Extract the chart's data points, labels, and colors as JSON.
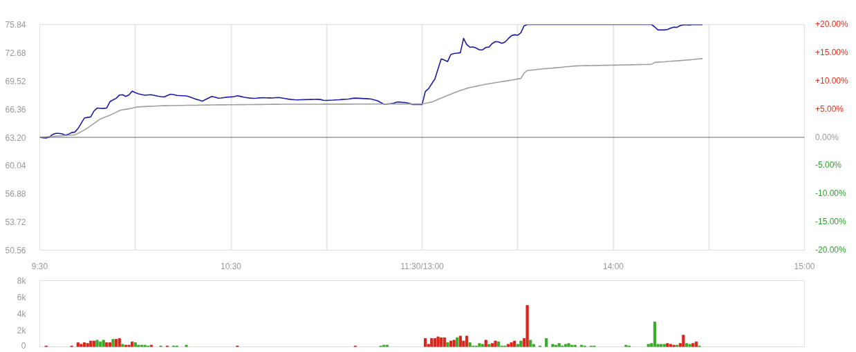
{
  "chart_data": [
    {
      "type": "line",
      "categories": [
        "9:30",
        null,
        null,
        null,
        null,
        null,
        null,
        null,
        null,
        null,
        null,
        null,
        null,
        null,
        null,
        null,
        null,
        null,
        null,
        null,
        null,
        null,
        null,
        null,
        null,
        null,
        null,
        null,
        null,
        null,
        null,
        null,
        null,
        null,
        null,
        null,
        null,
        null,
        null,
        null,
        null,
        null,
        null,
        null,
        null,
        null,
        null,
        null,
        null,
        null,
        null,
        null,
        null,
        null,
        null,
        null,
        null,
        null,
        null,
        null,
        "10:30",
        null,
        null,
        null,
        null,
        null,
        null,
        null,
        null,
        null,
        null,
        null,
        null,
        null,
        null,
        null,
        null,
        null,
        null,
        null,
        null,
        null,
        null,
        null,
        null,
        null,
        null,
        null,
        null,
        null,
        null,
        null,
        null,
        null,
        null,
        null,
        null,
        null,
        null,
        null,
        null,
        null,
        null,
        null,
        null,
        null,
        null,
        null,
        null,
        null,
        null,
        null,
        null,
        null,
        null,
        null,
        null,
        null,
        null,
        null,
        "11:30/13:00",
        null,
        null,
        null,
        null,
        null,
        null,
        null,
        null,
        null,
        null,
        null,
        null,
        null,
        null,
        null,
        null,
        null,
        null,
        null,
        null,
        null,
        null,
        null,
        null,
        null,
        null,
        null,
        null,
        null,
        null,
        null,
        null,
        null,
        null,
        null,
        null,
        null,
        null,
        null,
        null,
        null,
        null,
        null,
        null,
        null,
        null,
        null,
        null,
        null,
        null,
        null,
        null,
        null,
        null,
        null,
        null,
        null,
        null,
        null,
        "14:00",
        null,
        null,
        null,
        null,
        null,
        null,
        null,
        null,
        null,
        null,
        null,
        null,
        null,
        null,
        null,
        null,
        null,
        null,
        null,
        null,
        null,
        null,
        null,
        null,
        null,
        null,
        null,
        null,
        null,
        null,
        null,
        null,
        null,
        null,
        null,
        null,
        null,
        null,
        null,
        null,
        null,
        null,
        null,
        null,
        null,
        null,
        null,
        null,
        null,
        null,
        null,
        null,
        null,
        null,
        null,
        null,
        null,
        null,
        null,
        "15:00"
      ],
      "ylim": [
        50.56,
        75.84
      ],
      "yticks": [
        50.56,
        53.72,
        56.88,
        60.04,
        {
          "value": 63.2,
          "label": "63.20"
        },
        66.36,
        69.52,
        72.68,
        75.84
      ],
      "y2lim": [
        -20,
        20
      ],
      "y2ticks": [
        {
          "value": 20,
          "label": "+20.00%"
        },
        {
          "value": 15,
          "label": "+15.00%"
        },
        {
          "value": 10,
          "label": "+10.00%"
        },
        {
          "value": 5,
          "label": "+5.00%"
        },
        {
          "value": 0,
          "label": "0.00%"
        },
        {
          "value": -5,
          "label": "-5.00%"
        },
        {
          "value": -10,
          "label": "-10.00%"
        },
        {
          "value": -15,
          "label": "-15.00%"
        },
        {
          "value": -20,
          "label": "-20.00%"
        }
      ],
      "grid": "x",
      "ref_lines": [
        {
          "axis": "y",
          "value": 63.2,
          "color": "#666666"
        }
      ],
      "series": [
        {
          "color": "#1a1aa6",
          "values": [
            63.2,
            63.14,
            63.13,
            63.23,
            63.51,
            63.65,
            63.65,
            63.58,
            63.45,
            63.54,
            63.73,
            63.79,
            64.18,
            64.77,
            65.36,
            65.43,
            65.49,
            66.14,
            66.48,
            66.45,
            66.44,
            66.49,
            67.18,
            67.4,
            67.58,
            67.94,
            67.97,
            67.78,
            67.96,
            68.38,
            68.2,
            68.07,
            67.99,
            67.91,
            67.95,
            67.97,
            67.9,
            67.82,
            67.76,
            67.73,
            67.88,
            68.03,
            67.99,
            67.9,
            67.88,
            67.86,
            67.84,
            67.74,
            67.6,
            67.48,
            67.37,
            67.25,
            67.43,
            67.6,
            67.78,
            67.71,
            67.59,
            67.61,
            67.67,
            67.71,
            67.73,
            67.76,
            67.86,
            67.79,
            67.7,
            67.65,
            67.6,
            67.57,
            67.59,
            67.62,
            67.64,
            67.63,
            67.62,
            67.61,
            67.64,
            67.67,
            67.61,
            67.55,
            67.48,
            67.44,
            67.41,
            67.39,
            67.41,
            67.42,
            67.43,
            67.44,
            67.45,
            67.46,
            67.44,
            67.36,
            67.34,
            67.36,
            67.37,
            67.39,
            67.41,
            67.44,
            67.47,
            67.49,
            67.56,
            67.6,
            67.58,
            67.56,
            67.54,
            67.52,
            67.49,
            67.39,
            67.3,
            67.1,
            66.92,
            66.94,
            66.97,
            67.03,
            67.14,
            67.16,
            67.11,
            67.09,
            67.0,
            66.88,
            66.88,
            66.88,
            66.88,
            68.33,
            68.64,
            69.19,
            69.73,
            70.87,
            71.99,
            71.86,
            71.69,
            72.48,
            72.59,
            72.63,
            72.68,
            74.29,
            73.58,
            73.29,
            73.33,
            73.19,
            73.0,
            73.01,
            73.27,
            73.32,
            73.71,
            73.93,
            73.89,
            73.73,
            73.87,
            74.24,
            74.58,
            74.69,
            74.64,
            74.92,
            75.69,
            75.84,
            75.84,
            75.84,
            75.84,
            75.84,
            75.84,
            75.84,
            75.84,
            75.84,
            75.84,
            75.84,
            75.84,
            75.84,
            75.84,
            75.84,
            75.84,
            75.84,
            75.84,
            75.84,
            75.84,
            75.84,
            75.84,
            75.84,
            75.84,
            75.84,
            75.84,
            75.84,
            75.84,
            75.84,
            75.84,
            75.84,
            75.84,
            75.84,
            75.84,
            75.84,
            75.84,
            75.84,
            75.84,
            75.84,
            75.84,
            75.57,
            75.23,
            75.23,
            75.23,
            75.28,
            75.44,
            75.55,
            75.52,
            75.72,
            75.81,
            75.8,
            75.79,
            75.84,
            75.83,
            75.83,
            75.82,
            null,
            null,
            null,
            null,
            null,
            null,
            null,
            null,
            null,
            null,
            null,
            null,
            null,
            null,
            null,
            null,
            null,
            null,
            null,
            null,
            null,
            null,
            null,
            null,
            null,
            null,
            null,
            null,
            null,
            null,
            null,
            null
          ]
        },
        {
          "color": "#9e9e9e",
          "values": [
            63.2,
            63.23,
            63.25,
            63.28,
            63.3,
            63.33,
            63.36,
            63.38,
            63.41,
            63.43,
            63.45,
            63.48,
            63.64,
            63.83,
            64.02,
            64.25,
            64.5,
            64.75,
            65.0,
            65.26,
            65.4,
            65.54,
            65.67,
            65.84,
            66.01,
            66.19,
            66.29,
            66.34,
            66.4,
            66.47,
            66.56,
            66.61,
            66.63,
            66.65,
            66.67,
            66.68,
            66.7,
            66.72,
            66.74,
            66.75,
            66.75,
            66.76,
            66.76,
            66.77,
            66.77,
            66.78,
            66.79,
            66.79,
            66.8,
            66.8,
            66.81,
            66.81,
            66.82,
            66.82,
            66.83,
            66.83,
            66.84,
            66.84,
            66.84,
            66.85,
            66.85,
            66.85,
            66.86,
            66.86,
            66.86,
            66.87,
            66.87,
            66.87,
            66.88,
            66.88,
            66.88,
            66.89,
            66.89,
            66.9,
            66.9,
            66.9,
            66.91,
            66.91,
            66.91,
            66.91,
            66.91,
            66.91,
            66.91,
            66.91,
            66.91,
            66.91,
            66.91,
            66.91,
            66.91,
            66.92,
            66.92,
            66.92,
            66.92,
            66.92,
            66.92,
            66.92,
            66.92,
            66.92,
            66.92,
            66.93,
            66.93,
            66.93,
            66.93,
            66.93,
            66.93,
            66.93,
            66.93,
            66.93,
            66.93,
            66.93,
            66.94,
            66.94,
            66.94,
            66.94,
            66.94,
            66.94,
            66.94,
            66.94,
            66.94,
            66.94,
            66.95,
            67.01,
            67.08,
            67.15,
            67.3,
            67.45,
            67.6,
            67.74,
            67.89,
            68.03,
            68.18,
            68.33,
            68.45,
            68.56,
            68.68,
            68.78,
            68.85,
            68.93,
            69.0,
            69.07,
            69.15,
            69.21,
            69.27,
            69.33,
            69.38,
            69.44,
            69.49,
            69.55,
            69.61,
            69.68,
            69.74,
            69.8,
            70.4,
            70.68,
            70.72,
            70.76,
            70.79,
            70.83,
            70.87,
            70.9,
            70.93,
            70.96,
            71.0,
            71.03,
            71.06,
            71.1,
            71.13,
            71.16,
            71.19,
            71.21,
            71.22,
            71.23,
            71.23,
            71.24,
            71.25,
            71.25,
            71.26,
            71.27,
            71.27,
            71.28,
            71.29,
            71.29,
            71.3,
            71.31,
            71.32,
            71.33,
            71.33,
            71.34,
            71.35,
            71.36,
            71.36,
            71.37,
            71.38,
            71.6,
            71.62,
            71.65,
            71.67,
            71.7,
            71.72,
            71.75,
            71.77,
            71.8,
            71.83,
            71.86,
            71.89,
            71.92,
            71.96,
            71.99,
            72.02,
            null,
            null,
            null,
            null,
            null,
            null,
            null,
            null,
            null,
            null,
            null,
            null,
            null,
            null,
            null,
            null,
            null,
            null,
            null,
            null,
            null,
            null,
            null,
            null,
            null,
            null,
            null,
            null,
            null,
            null,
            null,
            null
          ]
        }
      ]
    },
    {
      "type": "bar",
      "tick_labels": "y",
      "categories": [
        null,
        null,
        null,
        null,
        null,
        null,
        null,
        null,
        null,
        null,
        null,
        null,
        null,
        null,
        null,
        null,
        null,
        null,
        null,
        null,
        null,
        null,
        null,
        null,
        null,
        null,
        null,
        null,
        null,
        null,
        null,
        null,
        null,
        null,
        null,
        null,
        null,
        null,
        null,
        null,
        null,
        null,
        null,
        null,
        null,
        null,
        null,
        null,
        null,
        null,
        null,
        null,
        null,
        null,
        null,
        null,
        null,
        null,
        null,
        null,
        null,
        null,
        null,
        null,
        null,
        null,
        null,
        null,
        null,
        null,
        null,
        null,
        null,
        null,
        null,
        null,
        null,
        null,
        null,
        null,
        null,
        null,
        null,
        null,
        null,
        null,
        null,
        null,
        null,
        null,
        null,
        null,
        null,
        null,
        null,
        null,
        null,
        null,
        null,
        null,
        null,
        null,
        null,
        null,
        null,
        null,
        null,
        null,
        null,
        null,
        null,
        null,
        null,
        null,
        null,
        null,
        null,
        null,
        null,
        null,
        null,
        null,
        null,
        null,
        null,
        null,
        null,
        null,
        null,
        null,
        null,
        null,
        null,
        null,
        null,
        null,
        null,
        null,
        null,
        null,
        null,
        null,
        null,
        null,
        null,
        null,
        null,
        null,
        null,
        null,
        null,
        null,
        null,
        null,
        null,
        null,
        null,
        null,
        null,
        null,
        null,
        null,
        null,
        null,
        null,
        null,
        null,
        null,
        null,
        null,
        null,
        null,
        null,
        null,
        null,
        null,
        null,
        null,
        null,
        null,
        null,
        null,
        null,
        null,
        null,
        null,
        null,
        null,
        null,
        null,
        null,
        null,
        null,
        null,
        null,
        null,
        null,
        null,
        null,
        null,
        null,
        null,
        null,
        null,
        null,
        null,
        null,
        null,
        null,
        null,
        null,
        null,
        null,
        null,
        null,
        null,
        null,
        null,
        null,
        null,
        null,
        null,
        null,
        null,
        null,
        null,
        null,
        null,
        null,
        null,
        null,
        null,
        null,
        null,
        null,
        null,
        null,
        null,
        null,
        null,
        null
      ],
      "ylim": [
        0,
        8000
      ],
      "yticks": [
        0,
        {
          "value": 2000,
          "label": "2k"
        },
        {
          "value": 4000,
          "label": "4k"
        },
        {
          "value": 6000,
          "label": "6k"
        },
        {
          "value": 8000,
          "label": "8k"
        }
      ],
      "values": [
        null,
        null,
        100,
        null,
        null,
        null,
        null,
        null,
        null,
        null,
        100,
        null,
        500,
        300,
        500,
        400,
        700,
        700,
        800,
        600,
        800,
        500,
        500,
        900,
        900,
        1000,
        300,
        200,
        200,
        600,
        500,
        200,
        200,
        200,
        100,
        200,
        null,
        null,
        100,
        null,
        100,
        null,
        100,
        100,
        null,
        null,
        200,
        null,
        null,
        null,
        null,
        null,
        null,
        null,
        null,
        null,
        null,
        null,
        null,
        null,
        null,
        null,
        100,
        null,
        null,
        null,
        null,
        null,
        null,
        null,
        null,
        null,
        null,
        null,
        null,
        null,
        null,
        null,
        null,
        null,
        null,
        null,
        null,
        null,
        null,
        null,
        null,
        null,
        null,
        null,
        null,
        null,
        null,
        null,
        null,
        null,
        null,
        null,
        null,
        100,
        null,
        null,
        null,
        null,
        null,
        null,
        null,
        100,
        200,
        200,
        null,
        null,
        null,
        null,
        null,
        null,
        null,
        null,
        null,
        null,
        null,
        1000,
        300,
        1000,
        1000,
        1200,
        1100,
        1100,
        500,
        700,
        800,
        1100,
        1300,
        700,
        1300,
        500,
        100,
        100,
        400,
        300,
        800,
        300,
        400,
        700,
        600,
        100,
        100,
        300,
        500,
        700,
        300,
        700,
        1000,
        5000,
        800,
        300,
        null,
        100,
        null,
        1000,
        null,
        300,
        200,
        400,
        100,
        300,
        400,
        200,
        200,
        null,
        200,
        100,
        null,
        100,
        100,
        null,
        null,
        null,
        null,
        null,
        null,
        null,
        null,
        null,
        200,
        100,
        null,
        null,
        null,
        null,
        null,
        300,
        400,
        3000,
        300,
        300,
        300,
        400,
        300,
        200,
        200,
        400,
        1400,
        400,
        300,
        400,
        600,
        100,
        null,
        null,
        null,
        null,
        null,
        null,
        null,
        null,
        null,
        null,
        null,
        null,
        null,
        null,
        null,
        null,
        null,
        null,
        null,
        null,
        null,
        null,
        null,
        null,
        null,
        null,
        null,
        null,
        null,
        null,
        null,
        null,
        null
      ],
      "colors": [
        null,
        null,
        "#d7281e",
        null,
        null,
        null,
        null,
        null,
        null,
        null,
        "#d7281e",
        null,
        "#d7281e",
        "#d7281e",
        "#d7281e",
        "#d7281e",
        "#d7281e",
        "#d7281e",
        "#3caa2d",
        "#3caa2d",
        "#3caa2d",
        "#d7281e",
        "#d7281e",
        "#3caa2d",
        "#d7281e",
        "#d7281e",
        "#3caa2d",
        "#d7281e",
        "#d7281e",
        "#d7281e",
        "#3caa2d",
        "#3caa2d",
        "#3caa2d",
        "#3caa2d",
        "#3caa2d",
        "#d7281e",
        null,
        null,
        "#3caa2d",
        null,
        "#d7281e",
        null,
        "#3caa2d",
        "#3caa2d",
        null,
        null,
        "#3caa2d",
        null,
        null,
        null,
        null,
        null,
        null,
        null,
        null,
        null,
        null,
        null,
        null,
        null,
        null,
        null,
        "#d7281e",
        null,
        null,
        null,
        null,
        null,
        null,
        null,
        null,
        null,
        null,
        null,
        null,
        null,
        null,
        null,
        null,
        null,
        null,
        null,
        null,
        null,
        null,
        null,
        null,
        null,
        null,
        null,
        null,
        null,
        null,
        null,
        null,
        null,
        null,
        null,
        null,
        "#d7281e",
        null,
        null,
        null,
        null,
        null,
        null,
        null,
        "#3caa2d",
        "#3caa2d",
        "#3caa2d",
        null,
        null,
        null,
        null,
        null,
        null,
        null,
        null,
        null,
        null,
        null,
        "#d7281e",
        "#d7281e",
        "#d7281e",
        "#d7281e",
        "#d7281e",
        "#d7281e",
        "#d7281e",
        "#3caa2d",
        "#d7281e",
        "#d7281e",
        "#3caa2d",
        "#d7281e",
        "#d7281e",
        "#d7281e",
        "#3caa2d",
        "#3caa2d",
        "#3caa2d",
        "#3caa2d",
        "#3caa2d",
        "#d7281e",
        "#3caa2d",
        "#d7281e",
        "#d7281e",
        "#3caa2d",
        "#3caa2d",
        "#3caa2d",
        "#d7281e",
        "#d7281e",
        "#d7281e",
        "#3caa2d",
        "#3caa2d",
        "#d7281e",
        "#d7281e",
        "#3caa2d",
        "#3caa2d",
        null,
        "#3caa2d",
        null,
        "#3caa2d",
        null,
        "#3caa2d",
        "#3caa2d",
        "#3caa2d",
        "#3caa2d",
        "#3caa2d",
        "#3caa2d",
        "#3caa2d",
        "#3caa2d",
        null,
        "#3caa2d",
        "#3caa2d",
        null,
        "#3caa2d",
        "#3caa2d",
        null,
        null,
        null,
        null,
        null,
        null,
        null,
        null,
        null,
        "#3caa2d",
        "#3caa2d",
        null,
        null,
        null,
        null,
        null,
        "#3caa2d",
        "#3caa2d",
        "#3caa2d",
        "#3caa2d",
        "#3caa2d",
        "#3caa2d",
        "#d7281e",
        "#d7281e",
        "#d7281e",
        "#3caa2d",
        "#d7281e",
        "#d7281e",
        "#3caa2d",
        "#3caa2d",
        "#d7281e",
        "#d7281e",
        "#3caa2d",
        null,
        null,
        null,
        null,
        null,
        null,
        null,
        null,
        null,
        null,
        null,
        null,
        null,
        null,
        null,
        null,
        null,
        null,
        null,
        null,
        null,
        null,
        null,
        null,
        null,
        null,
        null,
        null,
        null,
        null,
        null,
        null,
        null
      ]
    }
  ]
}
